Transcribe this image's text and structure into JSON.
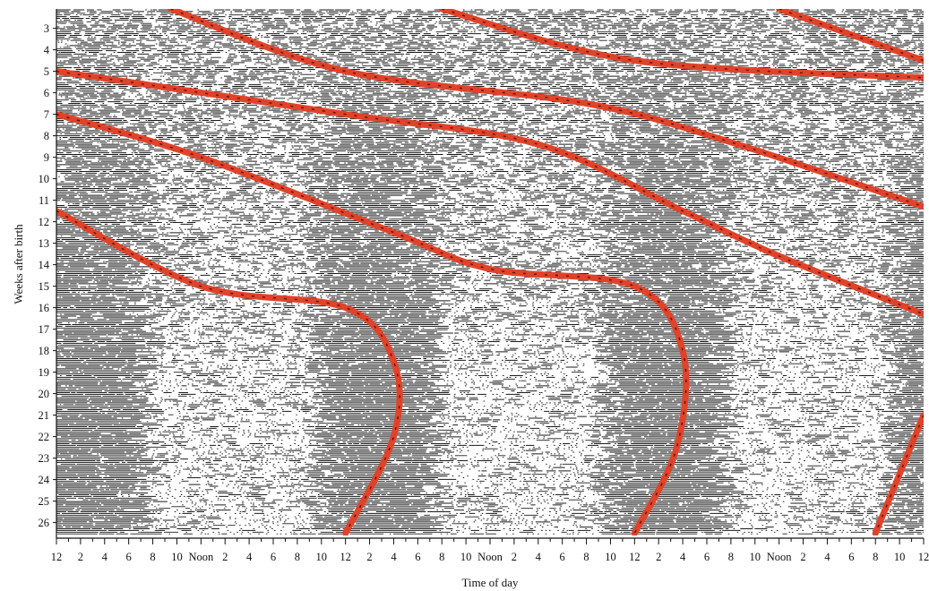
{
  "chart_data": {
    "type": "actogram",
    "xlabel": "Time of day",
    "ylabel": "Weeks after birth",
    "x_tick_labels": [
      "12",
      "2",
      "4",
      "6",
      "8",
      "10",
      "Noon",
      "2",
      "4",
      "6",
      "8",
      "10",
      "12",
      "2",
      "4",
      "6",
      "8",
      "10",
      "Noon",
      "2",
      "4",
      "6",
      "8",
      "10",
      "12",
      "2",
      "4",
      "6",
      "8",
      "10",
      "Noon",
      "2",
      "4",
      "6",
      "8",
      "10",
      "12"
    ],
    "x_range_hours": [
      0,
      72
    ],
    "y_tick_labels": [
      "3",
      "4",
      "5",
      "6",
      "7",
      "8",
      "9",
      "10",
      "11",
      "12",
      "13",
      "14",
      "15",
      "16",
      "17",
      "18",
      "19",
      "20",
      "21",
      "22",
      "23",
      "24",
      "25",
      "26"
    ],
    "y_range_weeks": [
      2.1,
      26.6
    ],
    "record": "sleep shown as horizontal bars, wakefulness as dots; multiple days plotted per row",
    "trend_lines": [
      {
        "points": [
          [
            9.5,
            2.1
          ],
          [
            24,
            5
          ],
          [
            44,
            6.5
          ],
          [
            56,
            8.3
          ],
          [
            72,
            11.3
          ]
        ]
      },
      {
        "points": [
          [
            0,
            5
          ],
          [
            24,
            7
          ],
          [
            40,
            8.4
          ],
          [
            52,
            11.5
          ],
          [
            60,
            13.6
          ],
          [
            72,
            16.3
          ]
        ]
      },
      {
        "points": [
          [
            0,
            7
          ],
          [
            12,
            9
          ],
          [
            28,
            12.5
          ],
          [
            36,
            14.2
          ],
          [
            48,
            15
          ],
          [
            52,
            18
          ],
          [
            51.5,
            22.5
          ],
          [
            48,
            26.5
          ]
        ]
      },
      {
        "points": [
          [
            0,
            11.5
          ],
          [
            12,
            15
          ],
          [
            24,
            16
          ],
          [
            28,
            18.5
          ],
          [
            28,
            22
          ],
          [
            24,
            26.5
          ]
        ]
      },
      {
        "points": [
          [
            32,
            2.1
          ],
          [
            48,
            4.5
          ],
          [
            72,
            5.3
          ]
        ]
      },
      {
        "points": [
          [
            60,
            2.1
          ],
          [
            72,
            4.5
          ]
        ]
      },
      {
        "points": [
          [
            72,
            21
          ],
          [
            68,
            26.5
          ]
        ]
      }
    ],
    "grid": false,
    "legend": "none"
  }
}
